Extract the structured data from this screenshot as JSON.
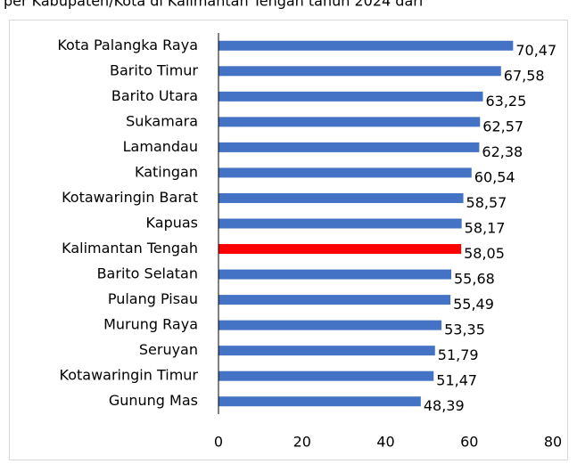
{
  "chart_data": {
    "type": "bar",
    "orientation": "horizontal",
    "title": "per Kabupaten/Kota di Kalimantan Tengah tahun 2024 dari",
    "categories": [
      "Kota Palangka Raya",
      "Barito Timur",
      "Barito Utara",
      "Sukamara",
      "Lamandau",
      "Katingan",
      "Kotawaringin Barat",
      "Kapuas",
      "Kalimantan Tengah",
      "Barito Selatan",
      "Pulang Pisau",
      "Murung Raya",
      "Seruyan",
      "Kotawaringin Timur",
      "Gunung Mas"
    ],
    "values": [
      70.47,
      67.58,
      63.25,
      62.57,
      62.38,
      60.54,
      58.57,
      58.17,
      58.05,
      55.68,
      55.49,
      53.35,
      51.79,
      51.47,
      48.39
    ],
    "value_labels": [
      "70,47",
      "67,58",
      "63,25",
      "62,57",
      "62,38",
      "60,54",
      "58,57",
      "58,17",
      "58,05",
      "55,68",
      "55,49",
      "53,35",
      "51,79",
      "51,47",
      "48,39"
    ],
    "colors": [
      "#4472c4",
      "#4472c4",
      "#4472c4",
      "#4472c4",
      "#4472c4",
      "#4472c4",
      "#4472c4",
      "#4472c4",
      "#ff0000",
      "#4472c4",
      "#4472c4",
      "#4472c4",
      "#4472c4",
      "#4472c4",
      "#4472c4"
    ],
    "xlim": [
      0,
      80
    ],
    "xticks": [
      0,
      20,
      40,
      60,
      80
    ],
    "grid": false
  }
}
